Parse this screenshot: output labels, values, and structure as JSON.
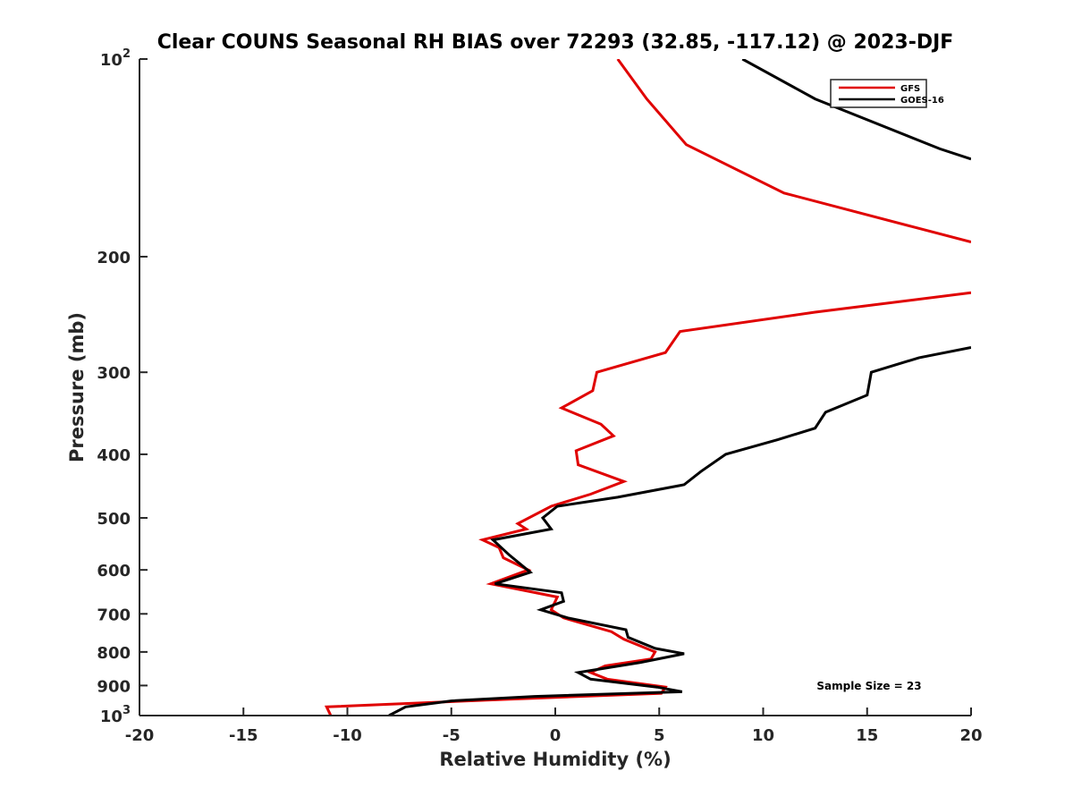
{
  "chart_data": {
    "type": "line",
    "title": "Clear COUNS Seasonal RH BIAS over 72293 (32.85, -117.12) @ 2023-DJF",
    "xlabel": "Relative Humidity (%)",
    "ylabel": "Pressure (mb)",
    "xlim": [
      -20,
      20
    ],
    "ylim": [
      100,
      1000
    ],
    "yscale": "log",
    "yreversed": true,
    "grid": false,
    "legend_position": "top-right",
    "x_ticks": [
      "-20",
      "-15",
      "-10",
      "-5",
      "0",
      "5",
      "10",
      "15",
      "20"
    ],
    "y_ticks": [
      {
        "value": 100,
        "base": "10",
        "exp": "2"
      },
      {
        "value": 200,
        "label": "200"
      },
      {
        "value": 300,
        "label": "300"
      },
      {
        "value": 400,
        "label": "400"
      },
      {
        "value": 500,
        "label": "500"
      },
      {
        "value": 600,
        "label": "600"
      },
      {
        "value": 700,
        "label": "700"
      },
      {
        "value": 800,
        "label": "800"
      },
      {
        "value": 900,
        "label": "900"
      },
      {
        "value": 1000,
        "base": "10",
        "exp": "3"
      }
    ],
    "annotation": "Sample Size = 23",
    "series": [
      {
        "name": "GFS",
        "color": "#e00000",
        "segments": [
          [
            [
              3.0,
              100
            ],
            [
              4.4,
              115
            ],
            [
              6.3,
              135
            ],
            [
              11.0,
              160
            ],
            [
              20.0,
              190
            ]
          ],
          [
            [
              20.0,
              227
            ],
            [
              12.5,
              243
            ],
            [
              6.0,
              260
            ],
            [
              5.3,
              280
            ],
            [
              2.0,
              300
            ],
            [
              1.8,
              320
            ],
            [
              0.3,
              340
            ],
            [
              2.2,
              360
            ],
            [
              2.8,
              375
            ],
            [
              1.0,
              395
            ],
            [
              1.1,
              415
            ],
            [
              3.3,
              440
            ],
            [
              1.7,
              460
            ],
            [
              -0.2,
              480
            ],
            [
              -1.8,
              510
            ],
            [
              -1.4,
              520
            ],
            [
              -3.5,
              540
            ],
            [
              -2.7,
              555
            ],
            [
              -2.5,
              575
            ],
            [
              -1.3,
              600
            ],
            [
              -3.1,
              630
            ],
            [
              0.1,
              660
            ],
            [
              -0.2,
              690
            ],
            [
              0.4,
              710
            ],
            [
              2.7,
              745
            ],
            [
              3.3,
              765
            ],
            [
              4.8,
              800
            ],
            [
              4.6,
              820
            ],
            [
              2.4,
              840
            ],
            [
              1.7,
              860
            ],
            [
              2.5,
              880
            ],
            [
              5.3,
              905
            ],
            [
              5.1,
              925
            ],
            [
              -2.5,
              945
            ],
            [
              -11.0,
              970
            ],
            [
              -10.8,
              1000
            ]
          ]
        ]
      },
      {
        "name": "GOES-16",
        "color": "#000000",
        "segments": [
          [
            [
              9.0,
              100
            ],
            [
              12.5,
              115
            ],
            [
              18.5,
              137
            ],
            [
              20.0,
              142
            ]
          ],
          [
            [
              20.0,
              275
            ],
            [
              17.5,
              285
            ],
            [
              15.2,
              300
            ],
            [
              15.0,
              325
            ],
            [
              13.0,
              345
            ],
            [
              12.5,
              365
            ],
            [
              10.7,
              380
            ],
            [
              8.2,
              400
            ],
            [
              7.0,
              425
            ],
            [
              6.2,
              445
            ],
            [
              3.0,
              465
            ],
            [
              0.1,
              480
            ],
            [
              -0.6,
              500
            ],
            [
              -0.2,
              520
            ],
            [
              -3.0,
              540
            ],
            [
              -2.2,
              570
            ],
            [
              -1.2,
              605
            ],
            [
              -2.9,
              630
            ],
            [
              0.3,
              650
            ],
            [
              0.4,
              670
            ],
            [
              -0.7,
              690
            ],
            [
              0.6,
              710
            ],
            [
              3.4,
              740
            ],
            [
              3.5,
              760
            ],
            [
              4.8,
              790
            ],
            [
              6.2,
              805
            ],
            [
              4.1,
              830
            ],
            [
              1.1,
              860
            ],
            [
              1.7,
              880
            ],
            [
              4.9,
              905
            ],
            [
              6.1,
              920
            ],
            [
              -1.0,
              935
            ],
            [
              -5.0,
              950
            ],
            [
              -7.2,
              970
            ],
            [
              -8.0,
              1000
            ]
          ]
        ]
      }
    ]
  }
}
